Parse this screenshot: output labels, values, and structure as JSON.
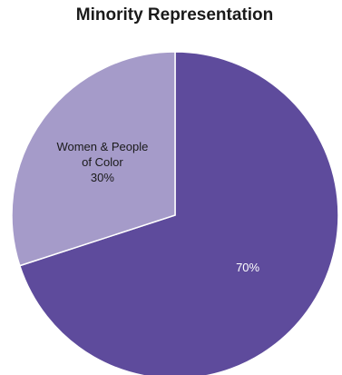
{
  "chart_data": {
    "type": "pie",
    "title": "Minority Representation",
    "slices": [
      {
        "label": "",
        "value": 70,
        "value_label": "70%",
        "color": "#5e4b9c",
        "label_color": "#ffffff"
      },
      {
        "label": "Women & People of Color",
        "label_lines": [
          "Women & People",
          "of Color"
        ],
        "value": 30,
        "value_label": "30%",
        "color": "#a59bc9",
        "label_color": "#1a1a1a"
      }
    ],
    "legend": "none"
  }
}
